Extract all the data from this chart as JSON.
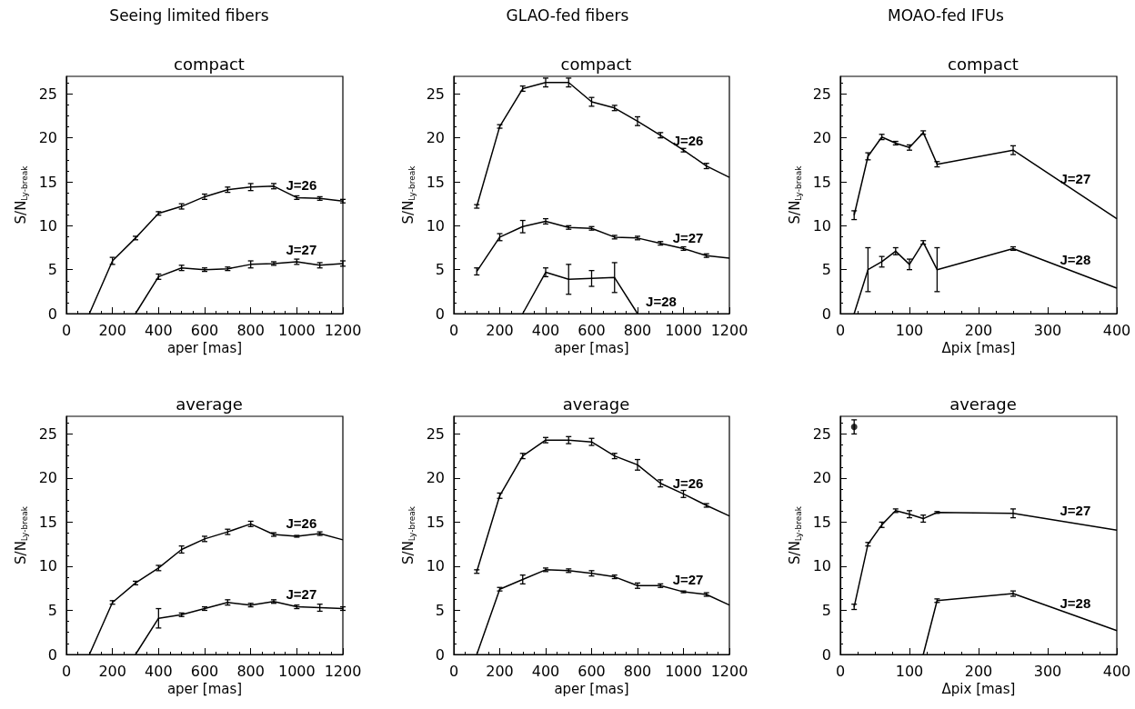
{
  "chart_data": [
    {
      "type": "line",
      "title": "compact",
      "annotations": [
        "Seeing limited fibers"
      ],
      "xlabel": "aper [mas]",
      "ylabel": "S/N$_{Ly-break}$",
      "xlim": [
        0,
        1200
      ],
      "xticks": [
        0,
        200,
        400,
        600,
        800,
        1000,
        1200
      ],
      "ylim": [
        0,
        27
      ],
      "yticks": [
        0,
        5,
        10,
        15,
        20,
        25
      ],
      "marker": "none",
      "series": [
        {
          "name": "J=26",
          "color": "#000000",
          "x": [
            100,
            200,
            300,
            400,
            500,
            600,
            700,
            800,
            900,
            1000,
            1100,
            1200
          ],
          "values": [
            0,
            6.0,
            8.6,
            11.4,
            12.2,
            13.3,
            14.1,
            14.4,
            14.5,
            13.2,
            13.1,
            12.8
          ],
          "errors": [
            null,
            0.4,
            0.2,
            0.2,
            0.3,
            0.3,
            0.3,
            0.4,
            0.3,
            0.2,
            0.2,
            0.2
          ]
        },
        {
          "name": "J=27",
          "color": "#000000",
          "x": [
            300,
            400,
            500,
            600,
            700,
            800,
            900,
            1000,
            1100,
            1200
          ],
          "values": [
            0,
            4.2,
            5.2,
            5.0,
            5.1,
            5.6,
            5.7,
            5.9,
            5.5,
            5.7
          ],
          "errors": [
            null,
            0.3,
            0.3,
            0.2,
            0.2,
            0.4,
            0.2,
            0.3,
            0.3,
            0.3
          ]
        }
      ]
    },
    {
      "type": "line",
      "title": "compact",
      "annotations": [
        "GLAO-fed fibers"
      ],
      "xlabel": "aper [mas]",
      "ylabel": "S/N$_{Ly-break}$",
      "xlim": [
        0,
        1200
      ],
      "xticks": [
        0,
        200,
        400,
        600,
        800,
        1000,
        1200
      ],
      "ylim": [
        0,
        27
      ],
      "yticks": [
        0,
        5,
        10,
        15,
        20,
        25
      ],
      "marker": "none",
      "series": [
        {
          "name": "J=26",
          "color": "#000000",
          "x": [
            100,
            200,
            300,
            400,
            500,
            600,
            700,
            800,
            900,
            1000,
            1100,
            1200
          ],
          "values": [
            12.2,
            21.3,
            25.6,
            26.3,
            26.3,
            24.1,
            23.4,
            21.9,
            20.3,
            18.6,
            16.8,
            15.5
          ],
          "errors": [
            0.2,
            0.2,
            0.3,
            0.5,
            0.5,
            0.5,
            0.3,
            0.5,
            0.3,
            0.2,
            0.3,
            null
          ]
        },
        {
          "name": "J=27",
          "color": "#000000",
          "x": [
            100,
            200,
            300,
            400,
            500,
            600,
            700,
            800,
            900,
            1000,
            1100,
            1200
          ],
          "values": [
            4.8,
            8.7,
            9.9,
            10.5,
            9.8,
            9.7,
            8.7,
            8.6,
            8.0,
            7.4,
            6.6,
            6.3
          ],
          "errors": [
            0.4,
            0.4,
            0.7,
            0.3,
            0.2,
            0.2,
            0.2,
            0.2,
            0.2,
            0.2,
            0.2,
            null
          ]
        },
        {
          "name": "J=28",
          "color": "#000000",
          "x": [
            300,
            400,
            500,
            600,
            700,
            800
          ],
          "values": [
            0,
            4.7,
            3.9,
            4.0,
            4.1,
            0
          ],
          "errors": [
            null,
            0.5,
            1.7,
            0.9,
            1.7,
            null
          ]
        }
      ]
    },
    {
      "type": "line",
      "title": "compact",
      "annotations": [
        "MOAO-fed IFUs"
      ],
      "xlabel": "Δpix [mas]",
      "ylabel": "S/N$_{Ly-break}$",
      "xlim": [
        0,
        400
      ],
      "xticks": [
        0,
        100,
        200,
        300,
        400
      ],
      "ylim": [
        0,
        27
      ],
      "yticks": [
        0,
        5,
        10,
        15,
        20,
        25
      ],
      "marker": "none",
      "series": [
        {
          "name": "J=27",
          "color": "#000000",
          "x": [
            20,
            40,
            60,
            80,
            100,
            120,
            140,
            250,
            400
          ],
          "values": [
            11.2,
            17.9,
            20.1,
            19.4,
            18.9,
            20.6,
            17.0,
            18.6,
            10.8
          ],
          "errors": [
            0.5,
            0.4,
            0.3,
            0.2,
            0.3,
            0.2,
            0.3,
            0.5,
            null
          ]
        },
        {
          "name": "J=28",
          "color": "#000000",
          "x": [
            20,
            40,
            60,
            80,
            100,
            120,
            140,
            250,
            400
          ],
          "values": [
            0,
            5.0,
            5.9,
            7.1,
            5.6,
            8.1,
            5.0,
            7.4,
            2.9
          ],
          "errors": [
            null,
            2.5,
            0.6,
            0.4,
            0.6,
            0.2,
            2.5,
            0.2,
            null
          ]
        }
      ]
    },
    {
      "type": "line",
      "title": "average",
      "xlabel": "aper [mas]",
      "ylabel": "S/N$_{Ly-break}$",
      "xlim": [
        0,
        1200
      ],
      "xticks": [
        0,
        200,
        400,
        600,
        800,
        1000,
        1200
      ],
      "ylim": [
        0,
        27
      ],
      "yticks": [
        0,
        5,
        10,
        15,
        20,
        25
      ],
      "marker": "none",
      "series": [
        {
          "name": "J=26",
          "color": "#000000",
          "x": [
            100,
            200,
            300,
            400,
            500,
            600,
            700,
            800,
            900,
            1000,
            1100,
            1200
          ],
          "values": [
            0,
            5.9,
            8.1,
            9.8,
            11.9,
            13.1,
            13.9,
            14.8,
            13.6,
            13.4,
            13.7,
            13.0
          ],
          "errors": [
            null,
            0.2,
            0.2,
            0.3,
            0.4,
            0.3,
            0.3,
            0.3,
            0.2,
            0.1,
            0.2,
            null
          ]
        },
        {
          "name": "J=27",
          "color": "#000000",
          "x": [
            300,
            400,
            500,
            600,
            700,
            800,
            900,
            1000,
            1100,
            1200
          ],
          "values": [
            0,
            4.1,
            4.5,
            5.2,
            5.9,
            5.6,
            6.0,
            5.4,
            5.3,
            5.2
          ],
          "errors": [
            null,
            1.1,
            0.2,
            0.2,
            0.3,
            0.2,
            0.2,
            0.2,
            0.4,
            0.2
          ]
        }
      ]
    },
    {
      "type": "line",
      "title": "average",
      "xlabel": "aper [mas]",
      "ylabel": "S/N$_{Ly-break}$",
      "xlim": [
        0,
        1200
      ],
      "xticks": [
        0,
        200,
        400,
        600,
        800,
        1000,
        1200
      ],
      "ylim": [
        0,
        27
      ],
      "yticks": [
        0,
        5,
        10,
        15,
        20,
        25
      ],
      "marker": "none",
      "series": [
        {
          "name": "J=26",
          "color": "#000000",
          "x": [
            100,
            200,
            300,
            400,
            500,
            600,
            700,
            800,
            900,
            1000,
            1100,
            1200
          ],
          "values": [
            9.4,
            18.0,
            22.5,
            24.3,
            24.3,
            24.1,
            22.5,
            21.5,
            19.4,
            18.2,
            16.9,
            15.7
          ],
          "errors": [
            0.2,
            0.3,
            0.3,
            0.3,
            0.4,
            0.4,
            0.3,
            0.6,
            0.4,
            0.4,
            0.2,
            null
          ]
        },
        {
          "name": "J=27",
          "color": "#000000",
          "x": [
            100,
            200,
            300,
            400,
            500,
            600,
            700,
            800,
            900,
            1000,
            1100,
            1200
          ],
          "values": [
            0,
            7.4,
            8.5,
            9.6,
            9.5,
            9.2,
            8.8,
            7.8,
            7.8,
            7.1,
            6.8,
            5.6
          ],
          "errors": [
            null,
            0.2,
            0.5,
            0.2,
            0.2,
            0.3,
            0.2,
            0.3,
            0.2,
            0.1,
            0.2,
            null
          ]
        }
      ]
    },
    {
      "type": "line",
      "title": "average",
      "xlabel": "Δpix [mas]",
      "ylabel": "S/N$_{Ly-break}$",
      "xlim": [
        0,
        400
      ],
      "xticks": [
        0,
        100,
        200,
        300,
        400
      ],
      "ylim": [
        0,
        27
      ],
      "yticks": [
        0,
        5,
        10,
        15,
        20,
        25
      ],
      "marker": "none",
      "series": [
        {
          "type": "scatter",
          "color": "#000000",
          "x": [
            20
          ],
          "values": [
            25.8
          ],
          "errors": [
            0.8
          ]
        },
        {
          "name": "J=27",
          "color": "#000000",
          "x": [
            20,
            40,
            60,
            80,
            100,
            120,
            140,
            250,
            400
          ],
          "values": [
            5.4,
            12.5,
            14.7,
            16.3,
            15.9,
            15.4,
            16.1,
            16.0,
            14.1
          ],
          "errors": [
            0.3,
            0.2,
            0.3,
            0.2,
            0.4,
            0.4,
            0.1,
            0.5,
            null
          ]
        },
        {
          "name": "J=28",
          "color": "#000000",
          "x": [
            120,
            140,
            250,
            400
          ],
          "values": [
            0,
            6.1,
            6.9,
            2.7
          ],
          "errors": [
            null,
            0.2,
            0.3,
            null
          ]
        }
      ]
    }
  ]
}
